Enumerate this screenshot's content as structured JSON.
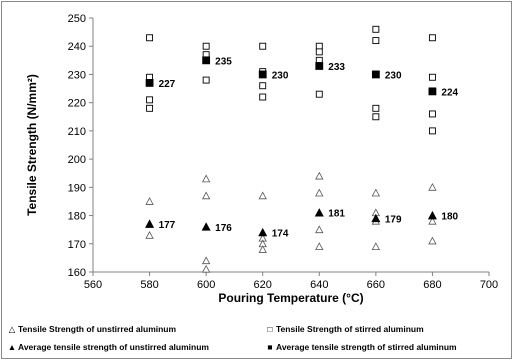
{
  "chart_data": {
    "type": "scatter",
    "xlabel": "Pouring Temperature",
    "xlabel_unit": "(°C)",
    "ylabel": "Tensile Strength (N/mm²)",
    "xlim": [
      560,
      700
    ],
    "ylim": [
      160,
      250
    ],
    "x_ticks": [
      560,
      580,
      600,
      620,
      640,
      660,
      680,
      700
    ],
    "y_ticks": [
      160,
      170,
      180,
      190,
      200,
      210,
      220,
      230,
      240,
      250
    ],
    "grid": false,
    "legend_position": "bottom",
    "series": [
      {
        "name": "Tensile Strength of unstirred aluminum",
        "marker": "open-triangle",
        "points": [
          [
            580,
            185
          ],
          [
            580,
            177
          ],
          [
            580,
            173
          ],
          [
            600,
            193
          ],
          [
            600,
            187
          ],
          [
            600,
            164
          ],
          [
            600,
            161
          ],
          [
            620,
            187
          ],
          [
            620,
            172
          ],
          [
            620,
            170
          ],
          [
            620,
            168
          ],
          [
            640,
            194
          ],
          [
            640,
            188
          ],
          [
            640,
            175
          ],
          [
            640,
            169
          ],
          [
            660,
            188
          ],
          [
            660,
            181
          ],
          [
            660,
            178
          ],
          [
            660,
            169
          ],
          [
            680,
            190
          ],
          [
            680,
            178
          ],
          [
            680,
            171
          ]
        ]
      },
      {
        "name": "Tensile Strength of stirred aluminum",
        "marker": "open-square",
        "points": [
          [
            580,
            243
          ],
          [
            580,
            229
          ],
          [
            580,
            221
          ],
          [
            580,
            218
          ],
          [
            600,
            240
          ],
          [
            600,
            237
          ],
          [
            600,
            228
          ],
          [
            620,
            240
          ],
          [
            620,
            231
          ],
          [
            620,
            226
          ],
          [
            620,
            222
          ],
          [
            640,
            240
          ],
          [
            640,
            238
          ],
          [
            640,
            235
          ],
          [
            640,
            223
          ],
          [
            660,
            246
          ],
          [
            660,
            242
          ],
          [
            660,
            218
          ],
          [
            660,
            215
          ],
          [
            680,
            243
          ],
          [
            680,
            229
          ],
          [
            680,
            216
          ],
          [
            680,
            210
          ]
        ]
      },
      {
        "name": "Average tensile strength of unstirred aluminum",
        "marker": "filled-triangle",
        "points": [
          [
            580,
            177
          ],
          [
            600,
            176
          ],
          [
            620,
            174
          ],
          [
            640,
            181
          ],
          [
            660,
            179
          ],
          [
            680,
            180
          ]
        ],
        "labels": [
          "177",
          "176",
          "174",
          "181",
          "179",
          "180"
        ]
      },
      {
        "name": "Average tensile strength of stirred aluminum",
        "marker": "filled-square",
        "points": [
          [
            580,
            227
          ],
          [
            600,
            235
          ],
          [
            620,
            230
          ],
          [
            640,
            233
          ],
          [
            660,
            230
          ],
          [
            680,
            224
          ]
        ],
        "labels": [
          "227",
          "235",
          "230",
          "233",
          "230",
          "224"
        ]
      }
    ]
  },
  "legend": [
    {
      "glyph": "△",
      "label": "Tensile Strength of unstirred aluminum"
    },
    {
      "glyph": "□",
      "label": "Tensile Strength of stirred aluminum"
    },
    {
      "glyph": "▲",
      "label": "Average tensile strength of unstirred aluminum"
    },
    {
      "glyph": "■",
      "label": "Average tensile strength of stirred aluminum"
    }
  ]
}
